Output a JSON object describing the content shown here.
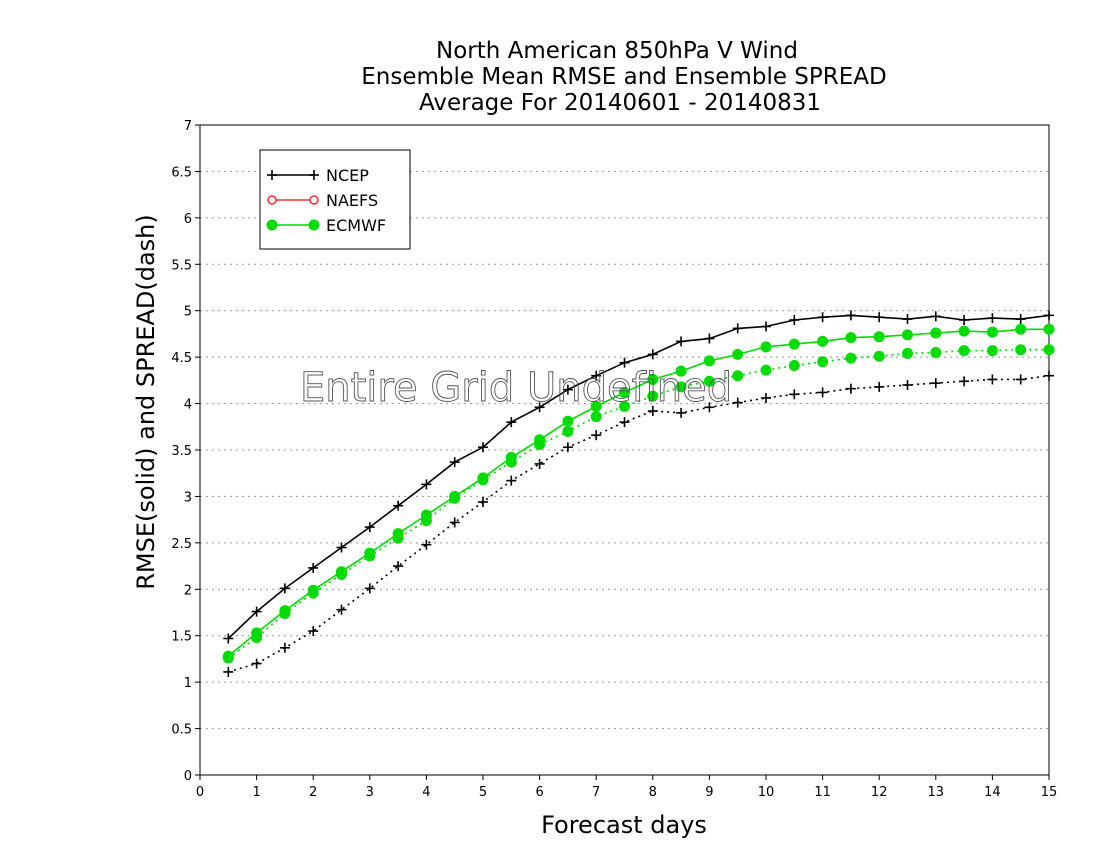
{
  "chart_data": {
    "type": "line",
    "title": "North American 850hPa V Wind",
    "subtitle": "Ensemble Mean RMSE and Ensemble SPREAD",
    "period": "Average For 20140601 - 20140831",
    "xlabel": "Forecast days",
    "ylabel": "RMSE(solid) and SPREAD(dash)",
    "annotation": "Entire Grid Undefined",
    "xlim": [
      0,
      15
    ],
    "ylim": [
      0,
      7
    ],
    "x_ticks": [
      "0",
      "1",
      "2",
      "3",
      "4",
      "5",
      "6",
      "7",
      "8",
      "9",
      "10",
      "11",
      "12",
      "13",
      "14",
      "15"
    ],
    "y_ticks": [
      "0",
      "0.5",
      "1",
      "1.5",
      "2",
      "2.5",
      "3",
      "3.5",
      "4",
      "4.5",
      "5",
      "5.5",
      "6",
      "6.5",
      "7"
    ],
    "grid": "horizontal dotted",
    "legend_position": "top-left",
    "x": [
      0.5,
      1,
      1.5,
      2,
      2.5,
      3,
      3.5,
      4,
      4.5,
      5,
      5.5,
      6,
      6.5,
      7,
      7.5,
      8,
      8.5,
      9,
      9.5,
      10,
      10.5,
      11,
      11.5,
      12,
      12.5,
      13,
      13.5,
      14,
      14.5,
      15
    ],
    "series": [
      {
        "name": "NCEP",
        "color": "#000000",
        "marker": "plus",
        "rmse": [
          1.47,
          1.76,
          2.01,
          2.23,
          2.45,
          2.67,
          2.9,
          3.13,
          3.37,
          3.53,
          3.8,
          3.96,
          4.15,
          4.3,
          4.44,
          4.53,
          4.67,
          4.7,
          4.81,
          4.83,
          4.9,
          4.93,
          4.95,
          4.93,
          4.91,
          4.94,
          4.9,
          4.92,
          4.91,
          4.95
        ],
        "spread": [
          1.11,
          1.2,
          1.37,
          1.55,
          1.78,
          2.01,
          2.25,
          2.48,
          2.72,
          2.94,
          3.17,
          3.35,
          3.53,
          3.66,
          3.8,
          3.92,
          3.9,
          3.96,
          4.01,
          4.06,
          4.1,
          4.12,
          4.16,
          4.18,
          4.2,
          4.22,
          4.24,
          4.26,
          4.26,
          4.3
        ]
      },
      {
        "name": "NAEFS",
        "color": "#ff3030",
        "marker": "open-circle",
        "rmse": [],
        "spread": []
      },
      {
        "name": "ECMWF",
        "color": "#00dc00",
        "marker": "filled-circle",
        "rmse": [
          1.28,
          1.53,
          1.77,
          1.99,
          2.19,
          2.39,
          2.6,
          2.8,
          3.0,
          3.2,
          3.42,
          3.61,
          3.81,
          3.97,
          4.12,
          4.26,
          4.35,
          4.46,
          4.53,
          4.61,
          4.64,
          4.67,
          4.71,
          4.72,
          4.74,
          4.76,
          4.78,
          4.77,
          4.8,
          4.8
        ],
        "spread": [
          1.26,
          1.48,
          1.74,
          1.96,
          2.16,
          2.36,
          2.55,
          2.74,
          2.98,
          3.18,
          3.37,
          3.56,
          3.7,
          3.86,
          3.97,
          4.08,
          4.18,
          4.24,
          4.3,
          4.36,
          4.41,
          4.45,
          4.49,
          4.51,
          4.54,
          4.55,
          4.57,
          4.57,
          4.58,
          4.58
        ]
      }
    ]
  }
}
